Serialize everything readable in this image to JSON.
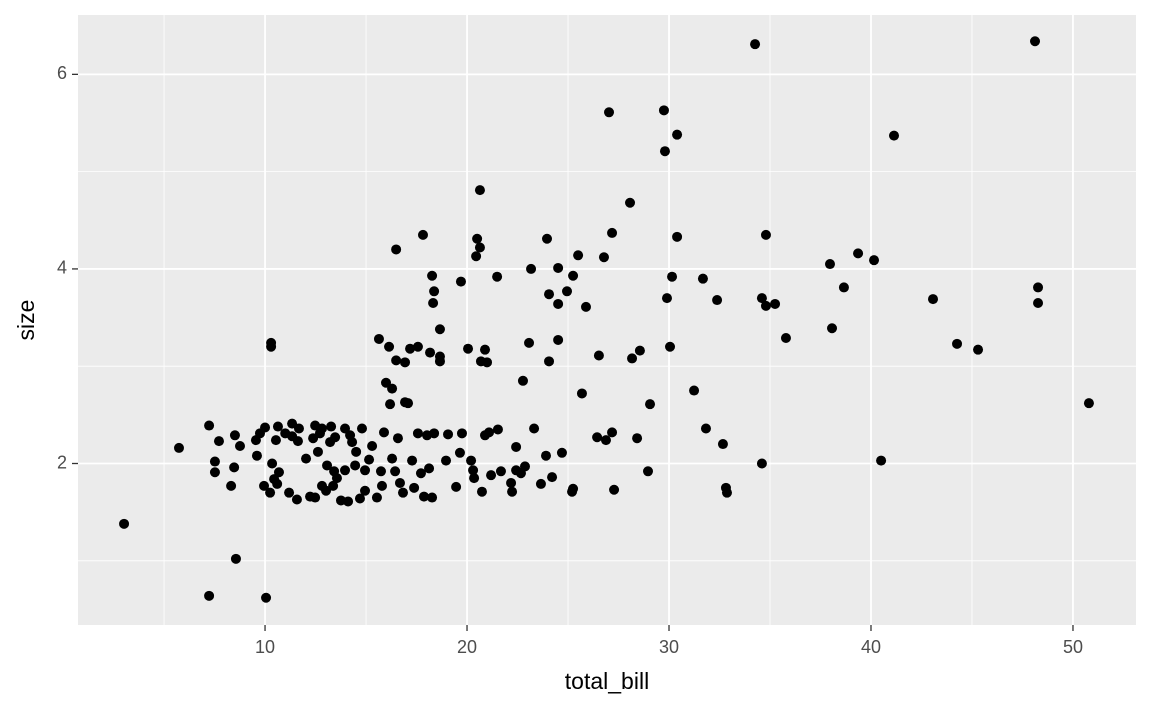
{
  "chart_data": {
    "type": "scatter",
    "x_label": "total_bill",
    "y_label": "size",
    "color": "#000000",
    "grid": true,
    "xlim": [
      0.74,
      53.12
    ],
    "ylim": [
      0.34,
      6.61
    ],
    "xticks": [
      10,
      20,
      30,
      40,
      50
    ],
    "yticks": [
      2,
      4,
      6
    ],
    "x": [
      3.02,
      5.74,
      7.23,
      7.23,
      7.52,
      7.52,
      7.72,
      8.32,
      8.47,
      8.56,
      8.51,
      8.76,
      9.55,
      9.6,
      9.75,
      10,
      10.05,
      9.95,
      10.3,
      10.3,
      10.25,
      10.35,
      10.45,
      10.54,
      10.64,
      10.69,
      10.6,
      11,
      11.19,
      11.34,
      11.34,
      11.58,
      11.63,
      11.68,
      12.03,
      12.23,
      12.38,
      12.48,
      12.48,
      12.62,
      12.72,
      12.82,
      12.82,
      13.02,
      13.07,
      13.27,
      13.37,
      13.22,
      13.47,
      13.42,
      13.56,
      13.76,
      13.96,
      13.96,
      14.11,
      14.21,
      14.31,
      14.46,
      14.51,
      14.7,
      14.8,
      14.95,
      14.95,
      15.15,
      15.3,
      15.54,
      15.64,
      15.74,
      15.79,
      15.89,
      15.99,
      16.14,
      16.19,
      16.29,
      16.29,
      16.44,
      16.49,
      16.49,
      16.58,
      16.68,
      16.83,
      16.93,
      16.93,
      17.08,
      17.18,
      17.28,
      17.38,
      17.57,
      17.57,
      17.72,
      17.82,
      17.87,
      18.02,
      18.12,
      18.17,
      18.27,
      18.27,
      18.37,
      18.32,
      18.37,
      18.66,
      18.66,
      18.66,
      18.96,
      19.06,
      19.46,
      19.65,
      19.7,
      19.75,
      20.05,
      20.2,
      20.3,
      20.35,
      20.45,
      20.5,
      20.64,
      20.64,
      20.69,
      20.74,
      20.89,
      20.89,
      20.99,
      21.09,
      21.19,
      21.49,
      21.53,
      21.68,
      22.18,
      22.23,
      22.43,
      22.43,
      22.67,
      22.77,
      22.87,
      23.07,
      23.17,
      23.32,
      23.66,
      23.91,
      23.96,
      24.06,
      24.06,
      24.21,
      24.51,
      24.51,
      24.51,
      24.7,
      24.95,
      25.2,
      25.25,
      25.25,
      25.5,
      25.69,
      25.89,
      26.53,
      26.44,
      26.78,
      26.88,
      27.03,
      27.18,
      27.18,
      27.28,
      28.07,
      28.17,
      28.42,
      28.56,
      28.96,
      29.06,
      29.8,
      29.75,
      29.9,
      30.05,
      30.15,
      30.4,
      30.4,
      31.24,
      31.68,
      31.83,
      32.38,
      32.67,
      32.82,
      32.87,
      34.26,
      34.6,
      34.6,
      34.8,
      34.8,
      35.25,
      35.79,
      37.97,
      38.07,
      38.66,
      39.36,
      40.15,
      40.5,
      41.14,
      43.07,
      44.26,
      45.3,
      48.12,
      48.27,
      48.27,
      50.79
    ],
    "y": [
      1.38,
      2.16,
      2.39,
      0.64,
      1.91,
      2.02,
      2.23,
      1.77,
      1.96,
      1.02,
      2.29,
      2.18,
      2.24,
      2.08,
      2.31,
      2.37,
      0.62,
      1.77,
      3.24,
      3.2,
      1.7,
      2.0,
      1.84,
      2.24,
      2.38,
      1.91,
      1.79,
      2.31,
      1.7,
      2.41,
      2.28,
      1.63,
      2.23,
      2.36,
      2.05,
      1.66,
      2.26,
      1.65,
      2.39,
      2.12,
      2.31,
      1.77,
      2.36,
      1.72,
      1.98,
      2.38,
      1.77,
      2.22,
      2.27,
      1.92,
      1.85,
      1.62,
      2.36,
      1.93,
      1.61,
      2.29,
      2.22,
      1.98,
      2.12,
      1.64,
      2.36,
      1.93,
      1.72,
      2.04,
      2.18,
      1.65,
      3.28,
      1.92,
      1.77,
      2.32,
      2.83,
      3.2,
      2.61,
      2.77,
      2.05,
      1.92,
      4.2,
      3.06,
      2.26,
      1.8,
      1.7,
      3.04,
      2.63,
      2.62,
      3.18,
      2.03,
      1.75,
      3.2,
      2.31,
      1.9,
      4.35,
      1.66,
      2.29,
      1.95,
      3.14,
      3.93,
      1.65,
      3.77,
      3.65,
      2.31,
      3.38,
      3.05,
      3.1,
      2.03,
      2.3,
      1.76,
      2.11,
      3.87,
      2.31,
      3.18,
      2.03,
      1.93,
      1.85,
      4.13,
      4.31,
      4.81,
      4.22,
      3.05,
      1.71,
      3.17,
      2.29,
      3.04,
      2.32,
      1.88,
      3.92,
      2.35,
      1.92,
      1.8,
      1.71,
      2.17,
      1.93,
      1.9,
      2.85,
      1.97,
      3.24,
      4.0,
      2.36,
      1.79,
      2.08,
      4.31,
      3.74,
      3.05,
      1.86,
      4.01,
      3.64,
      3.27,
      2.11,
      3.77,
      1.71,
      3.93,
      1.74,
      4.14,
      2.72,
      3.61,
      3.11,
      2.27,
      4.12,
      2.24,
      5.61,
      2.32,
      4.37,
      1.73,
      4.68,
      3.08,
      2.26,
      3.16,
      1.92,
      2.61,
      5.21,
      5.63,
      3.7,
      3.2,
      3.92,
      5.38,
      4.33,
      2.75,
      3.9,
      2.36,
      3.68,
      2.2,
      1.75,
      1.7,
      6.31,
      2.0,
      3.7,
      4.35,
      3.62,
      3.64,
      3.29,
      4.05,
      3.39,
      3.81,
      4.16,
      4.09,
      2.03,
      5.37,
      3.69,
      3.23,
      3.17,
      6.34,
      3.81,
      3.65,
      2.62
    ]
  }
}
